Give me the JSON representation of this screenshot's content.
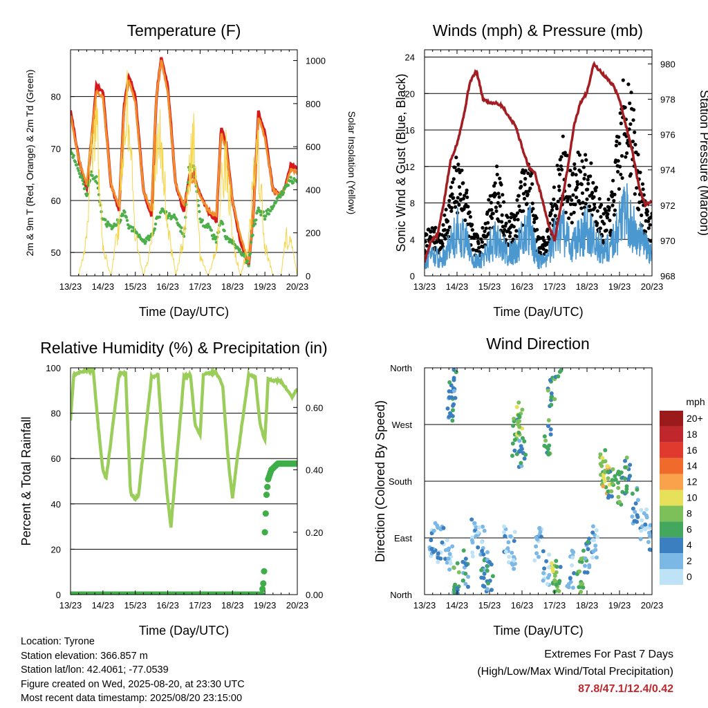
{
  "info": {
    "location": "Location: Tyrone",
    "elevation": "Station elevation: 366.857 m",
    "latlon": "Station lat/lon: 42.4061; -77.0539",
    "created": "Figure created on Wed, 2025-08-20, at 23:30 UTC",
    "recent": "Most recent data timestamp: 2025/08/20 23:15:00"
  },
  "extremes": {
    "heading": "Extremes For Past 7 Days",
    "subheading": "(High/Low/Max Wind/Total Precipitation)",
    "values": "87.8/47.1/12.4/0.42",
    "color": "#c0272d"
  },
  "chart_data": [
    {
      "id": "temperature",
      "type": "line",
      "title": "Temperature (F)",
      "xlabel": "Time (Day/UTC)",
      "ylabel": "2m & 9m T (Red, Orange) & 2m Td (Green)",
      "y2label": "Solar Insolation (Yellow)",
      "x_ticks": [
        "13/23",
        "14/23",
        "15/23",
        "16/23",
        "17/23",
        "18/23",
        "19/23",
        "20/23"
      ],
      "ylim": [
        45.5,
        89
      ],
      "y_ticks": [
        50,
        60,
        70,
        80
      ],
      "y2lim": [
        0,
        1050
      ],
      "y2_ticks": [
        0,
        200,
        400,
        600,
        800,
        1000
      ],
      "grid": "horizontal",
      "x": [
        0,
        0.25,
        0.5,
        0.65,
        0.8,
        1.0,
        1.25,
        1.5,
        1.65,
        1.8,
        2.0,
        2.25,
        2.5,
        2.65,
        2.8,
        3.0,
        3.25,
        3.5,
        3.65,
        3.8,
        4.0,
        4.25,
        4.5,
        4.65,
        4.8,
        5.0,
        5.25,
        5.5,
        5.65,
        5.8,
        6.0,
        6.25,
        6.5,
        6.65,
        6.8,
        7.0
      ],
      "series": [
        {
          "color": "#d7191c",
          "kind": "line",
          "values": [
            77.5,
            68,
            62,
            72,
            82,
            81,
            63,
            58,
            78,
            84,
            80,
            62,
            57,
            80,
            87.5,
            82,
            63,
            58,
            64,
            65,
            61,
            58,
            56,
            74,
            71,
            60,
            52,
            47.5,
            58,
            77,
            73,
            62,
            61,
            63,
            67,
            66
          ]
        },
        {
          "color": "#f28e2b",
          "kind": "line",
          "values": [
            76.5,
            68,
            63,
            72,
            81,
            80,
            63,
            59,
            77,
            83,
            79,
            62,
            58,
            80,
            87,
            81,
            63,
            59,
            63,
            64,
            61,
            58,
            57,
            73,
            70,
            60,
            53,
            48,
            58,
            76,
            72,
            62,
            61,
            63,
            66,
            65.5
          ]
        },
        {
          "color": "#4daf4a",
          "kind": "dots",
          "values": [
            70,
            66,
            61,
            65,
            64,
            56,
            55,
            56,
            58,
            55,
            54,
            52,
            53,
            56,
            58,
            57,
            57,
            53,
            66,
            67,
            56,
            55,
            52,
            56,
            53,
            52,
            50,
            48,
            55,
            58,
            57,
            59,
            61,
            63,
            64,
            63.5
          ]
        },
        {
          "color": "#f5d547",
          "kind": "y2line",
          "values": [
            0,
            0,
            220,
            820,
            940,
            180,
            0,
            320,
            950,
            1000,
            240,
            0,
            180,
            700,
            860,
            300,
            0,
            230,
            540,
            820,
            120,
            0,
            160,
            520,
            740,
            200,
            0,
            200,
            620,
            700,
            180,
            0,
            0,
            230,
            190,
            0
          ]
        }
      ]
    },
    {
      "id": "winds",
      "type": "scatter",
      "title": "Winds (mph) & Pressure (mb)",
      "xlabel": "Time (Day/UTC)",
      "ylabel": "Sonic Wind & Gust (Blue, Black)",
      "y2label": "Station Pressure (Maroon)",
      "x_ticks": [
        "13/23",
        "14/23",
        "15/23",
        "16/23",
        "17/23",
        "18/23",
        "19/23",
        "20/23"
      ],
      "ylim": [
        0,
        24.8
      ],
      "y_ticks": [
        0,
        4,
        8,
        12,
        16,
        20,
        24
      ],
      "y2lim": [
        968,
        980.8
      ],
      "y2_ticks": [
        968,
        970,
        972,
        974,
        976,
        978,
        980
      ],
      "grid": "horizontal",
      "pressure": {
        "color": "#a31d22",
        "x": [
          0,
          0.2,
          0.4,
          0.6,
          0.8,
          1.0,
          1.2,
          1.4,
          1.6,
          1.8,
          2.0,
          2.2,
          2.4,
          2.6,
          2.8,
          3.0,
          3.2,
          3.4,
          3.6,
          3.8,
          4.0,
          4.2,
          4.4,
          4.6,
          4.8,
          5.0,
          5.2,
          5.4,
          5.6,
          5.8,
          6.0,
          6.2,
          6.4,
          6.6,
          6.8,
          7.0
        ],
        "values": [
          968.8,
          970,
          970.3,
          972.2,
          974.5,
          975.5,
          977,
          979,
          979.6,
          978,
          977.8,
          977.8,
          977.6,
          977,
          976.5,
          975.3,
          974.2,
          973.8,
          972.5,
          971,
          970,
          972,
          974,
          976.5,
          977.8,
          978.4,
          980,
          979.6,
          979.2,
          978.8,
          978,
          976.5,
          975,
          973,
          972,
          972.2
        ]
      },
      "wind": {
        "color": "#4b97d0",
        "x": [
          0,
          0.25,
          0.5,
          0.75,
          1.0,
          1.25,
          1.5,
          1.75,
          2.0,
          2.25,
          2.5,
          2.75,
          3.0,
          3.25,
          3.5,
          3.75,
          4.0,
          4.25,
          4.5,
          4.75,
          5.0,
          5.25,
          5.5,
          5.75,
          6.0,
          6.25,
          6.5,
          6.75,
          7.0
        ],
        "values": [
          2,
          3,
          2,
          4,
          6,
          5,
          2,
          2,
          4,
          5,
          3,
          3,
          5,
          6,
          2,
          2,
          5,
          6,
          4,
          5,
          6,
          5,
          3,
          4,
          7,
          8,
          6,
          4,
          3
        ]
      },
      "gust": {
        "color": "#000000",
        "x": [
          0,
          0.25,
          0.5,
          0.75,
          1.0,
          1.25,
          1.5,
          1.75,
          2.0,
          2.25,
          2.5,
          2.75,
          3.0,
          3.25,
          3.5,
          3.75,
          4.0,
          4.25,
          4.5,
          4.75,
          5.0,
          5.25,
          5.5,
          5.75,
          6.0,
          6.25,
          6.5,
          6.75,
          7.0
        ],
        "values": [
          4,
          5,
          4,
          8,
          12,
          10,
          4,
          4,
          8,
          11,
          6,
          6,
          10,
          12,
          4,
          4,
          9,
          14,
          10,
          12,
          12,
          10,
          6,
          8,
          16,
          22,
          14,
          8,
          6
        ]
      }
    },
    {
      "id": "humidity",
      "type": "line",
      "title": "Relative Humidity (%) & Precipitation (in)",
      "xlabel": "Time (Day/UTC)",
      "ylabel": "Percent & Total Rainfall",
      "x_ticks": [
        "13/23",
        "14/23",
        "15/23",
        "16/23",
        "17/23",
        "18/23",
        "19/23",
        "20/23"
      ],
      "ylim": [
        0,
        100
      ],
      "y_ticks": [
        0,
        20,
        40,
        60,
        80,
        100
      ],
      "y2lim": [
        0,
        0.727
      ],
      "y2_ticks": [
        "0.00",
        "0.20",
        "0.40",
        "0.60"
      ],
      "grid": "horizontal",
      "x": [
        0,
        0.1,
        0.5,
        0.7,
        0.85,
        1.0,
        1.1,
        1.5,
        1.7,
        1.85,
        2.0,
        2.1,
        2.5,
        2.7,
        2.85,
        3.0,
        3.1,
        3.5,
        3.7,
        3.85,
        4.0,
        4.1,
        4.5,
        4.7,
        4.85,
        5.0,
        5.1,
        5.5,
        5.7,
        5.85,
        6.0,
        6.1,
        6.5,
        6.7,
        6.85,
        7.0
      ],
      "series": [
        {
          "color": "#9acd5a",
          "kind": "line",
          "values": [
            77,
            97,
            99,
            99,
            75,
            55,
            51,
            97,
            98,
            45,
            42,
            44,
            96,
            97,
            65,
            42,
            30,
            96,
            97,
            75,
            70,
            97,
            98,
            92,
            62,
            42,
            55,
            97,
            96,
            75,
            68,
            95,
            94,
            90,
            87,
            91
          ]
        },
        {
          "color": "#3fae49",
          "kind": "precip",
          "x": [
            0,
            5.9,
            5.97,
            6.0,
            6.05,
            6.1,
            6.2,
            6.4,
            6.6,
            7.0
          ],
          "values": [
            0,
            0,
            0.05,
            0.2,
            0.32,
            0.37,
            0.4,
            0.42,
            0.42,
            0.42
          ]
        }
      ]
    },
    {
      "id": "wind-direction",
      "type": "scatter",
      "title": "Wind Direction",
      "xlabel": "Time (Day/UTC)",
      "ylabel": "Direction (Colored By Speed)",
      "x_ticks": [
        "13/23",
        "14/23",
        "15/23",
        "16/23",
        "17/23",
        "18/23",
        "19/23",
        "20/23"
      ],
      "ylim": [
        0,
        360
      ],
      "y_ticks": [
        "North",
        "East",
        "South",
        "West",
        "North"
      ],
      "grid": "horizontal",
      "colorbar": {
        "title": "mph",
        "labels": [
          "20+",
          "18",
          "16",
          "14",
          "12",
          "10",
          "8",
          "6",
          "4",
          "2",
          "0"
        ],
        "colors": [
          "#9b1b1d",
          "#c0272d",
          "#e03a2f",
          "#f06a2b",
          "#f9a24b",
          "#e6e05a",
          "#7dc05a",
          "#43a85e",
          "#3b7fc0",
          "#7bb8e6",
          "#bfe3f6"
        ]
      },
      "points": [
        {
          "t": 0.25,
          "dir": 90,
          "speed": 2
        },
        {
          "t": 0.5,
          "dir": 80,
          "speed": 2
        },
        {
          "t": 0.75,
          "dir": 60,
          "speed": 2
        },
        {
          "t": 0.8,
          "dir": 300,
          "speed": 4
        },
        {
          "t": 0.85,
          "dir": 340,
          "speed": 4
        },
        {
          "t": 1.0,
          "dir": 20,
          "speed": 6
        },
        {
          "t": 1.25,
          "dir": 40,
          "speed": 4
        },
        {
          "t": 1.5,
          "dir": 90,
          "speed": 2
        },
        {
          "t": 1.75,
          "dir": 80,
          "speed": 2
        },
        {
          "t": 1.85,
          "dir": 40,
          "speed": 4
        },
        {
          "t": 2.0,
          "dir": 30,
          "speed": 4
        },
        {
          "t": 2.5,
          "dir": 80,
          "speed": 2
        },
        {
          "t": 2.75,
          "dir": 70,
          "speed": 2
        },
        {
          "t": 2.8,
          "dir": 250,
          "speed": 6
        },
        {
          "t": 2.9,
          "dir": 280,
          "speed": 8
        },
        {
          "t": 3.0,
          "dir": 230,
          "speed": 4
        },
        {
          "t": 3.5,
          "dir": 80,
          "speed": 2
        },
        {
          "t": 3.75,
          "dir": 40,
          "speed": 2
        },
        {
          "t": 3.8,
          "dir": 250,
          "speed": 6
        },
        {
          "t": 3.9,
          "dir": 320,
          "speed": 6
        },
        {
          "t": 4.0,
          "dir": 30,
          "speed": 8
        },
        {
          "t": 4.1,
          "dir": 15,
          "speed": 6
        },
        {
          "t": 4.5,
          "dir": 40,
          "speed": 2
        },
        {
          "t": 4.8,
          "dir": 30,
          "speed": 6
        },
        {
          "t": 5.0,
          "dir": 60,
          "speed": 4
        },
        {
          "t": 5.25,
          "dir": 80,
          "speed": 2
        },
        {
          "t": 5.5,
          "dir": 200,
          "speed": 8
        },
        {
          "t": 5.6,
          "dir": 190,
          "speed": 10
        },
        {
          "t": 5.75,
          "dir": 180,
          "speed": 6
        },
        {
          "t": 6.0,
          "dir": 170,
          "speed": 6
        },
        {
          "t": 6.25,
          "dir": 190,
          "speed": 6
        },
        {
          "t": 6.5,
          "dir": 140,
          "speed": 4
        },
        {
          "t": 6.75,
          "dir": 110,
          "speed": 2
        },
        {
          "t": 7.0,
          "dir": 100,
          "speed": 2
        }
      ]
    }
  ]
}
